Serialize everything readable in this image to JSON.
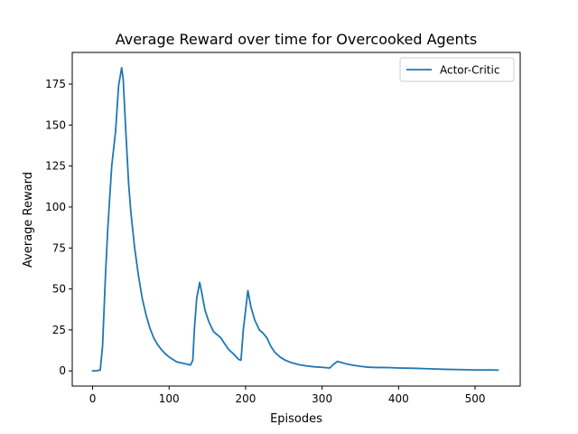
{
  "chart_data": {
    "type": "line",
    "title": "Average Reward over time for Overcooked Agents",
    "xlabel": "Episodes",
    "ylabel": "Average Reward",
    "xlim": [
      -26.6,
      559
    ],
    "ylim": [
      -9.25,
      194.3
    ],
    "xticks": [
      0,
      100,
      200,
      300,
      400,
      500
    ],
    "yticks": [
      0,
      25,
      50,
      75,
      100,
      125,
      150,
      175
    ],
    "grid": false,
    "legend_position": "top-right",
    "series": [
      {
        "name": "Actor-Critic",
        "color": "#1f77b4",
        "x": [
          0,
          5,
          10,
          13,
          17,
          20,
          25,
          30,
          34,
          38,
          40,
          43,
          47,
          50,
          55,
          60,
          65,
          70,
          75,
          80,
          85,
          90,
          95,
          100,
          110,
          120,
          128,
          131,
          133,
          136,
          140,
          143,
          147,
          152,
          158,
          163,
          168,
          172,
          178,
          185,
          191,
          194,
          197,
          200,
          203,
          207,
          212,
          218,
          223,
          228,
          233,
          238,
          245,
          252,
          260,
          270,
          280,
          290,
          300,
          310,
          315,
          320,
          330,
          340,
          350,
          360,
          370,
          380,
          390,
          400,
          420,
          440,
          460,
          480,
          500,
          520,
          530
        ],
        "y": [
          0,
          0.1,
          0.5,
          15,
          60,
          88,
          125,
          146,
          174,
          185,
          178,
          150,
          115,
          97,
          75,
          58,
          44,
          34,
          26,
          20,
          16,
          13,
          10.5,
          8.5,
          5.5,
          4.5,
          3.6,
          6.5,
          25,
          44,
          54,
          47,
          37,
          30,
          24,
          22,
          20,
          17,
          13,
          10,
          7,
          6.5,
          25,
          37,
          49,
          39,
          31,
          25,
          23,
          20,
          15,
          11.5,
          8.5,
          6.5,
          5,
          3.8,
          3,
          2.5,
          2.2,
          1.8,
          4,
          5.8,
          4.5,
          3.5,
          2.8,
          2.3,
          2.1,
          2.1,
          2,
          1.8,
          1.6,
          1.3,
          1,
          0.8,
          0.6,
          0.6,
          0.5
        ]
      }
    ]
  }
}
